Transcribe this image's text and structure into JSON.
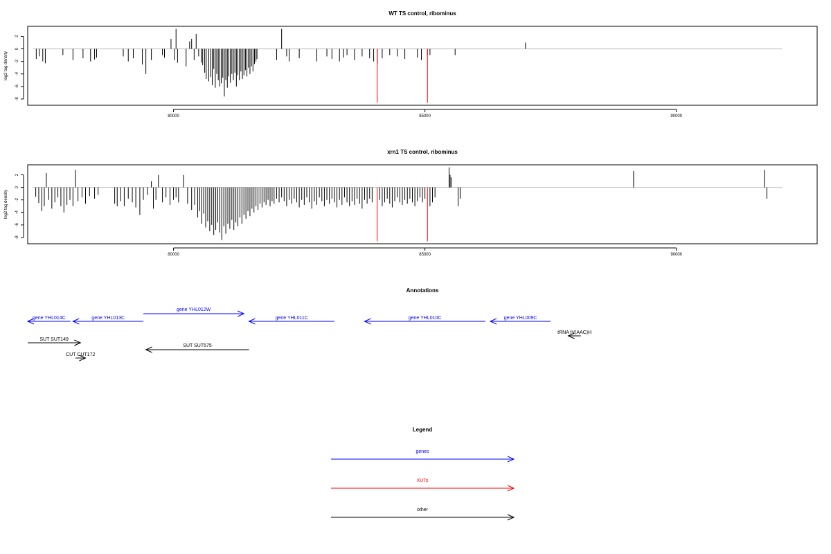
{
  "colors": {
    "gene": "#0000ff",
    "xut": "#ff0000",
    "other": "#000000",
    "baseline": "#bebebe"
  },
  "chart_data": [
    {
      "type": "bar",
      "title": "WT TS control, ribominus",
      "ylabel": "log2 tag density",
      "xlim": [
        77100,
        92800
      ],
      "ylim": [
        -9,
        3.6
      ],
      "xticks": [
        80000,
        85000,
        90000
      ],
      "yticks": [
        -8,
        -6,
        -4,
        -2,
        0,
        2
      ],
      "baseline_range": [
        77200,
        92100
      ],
      "bars": [
        [
          77270,
          -1.6
        ],
        [
          77330,
          -1.2
        ],
        [
          77400,
          -2.0
        ],
        [
          77450,
          -2.3
        ],
        [
          77800,
          -1.0
        ],
        [
          78000,
          -1.8
        ],
        [
          78200,
          -1.5
        ],
        [
          78350,
          -2.0
        ],
        [
          78430,
          -1.7
        ],
        [
          78470,
          -1.4
        ],
        [
          79000,
          -1.2
        ],
        [
          79100,
          -2.0
        ],
        [
          79200,
          -1.5
        ],
        [
          79380,
          -2.5
        ],
        [
          79450,
          -4.0
        ],
        [
          79560,
          -1.8
        ],
        [
          79780,
          -1.0
        ],
        [
          79820,
          -1.4
        ],
        [
          79950,
          1.6
        ],
        [
          80020,
          -1.8
        ],
        [
          80050,
          3.2
        ],
        [
          80080,
          -2.2
        ],
        [
          80250,
          -2.8
        ],
        [
          80320,
          1.2
        ],
        [
          80360,
          1.6
        ],
        [
          80410,
          -1.8
        ],
        [
          80450,
          2.4
        ],
        [
          80500,
          -1.2
        ],
        [
          80550,
          -2.2
        ],
        [
          80580,
          -2.6
        ],
        [
          80620,
          -3.8
        ],
        [
          80650,
          -4.8
        ],
        [
          80700,
          -5.2
        ],
        [
          80740,
          -4.5
        ],
        [
          80770,
          -5.8
        ],
        [
          80800,
          -3.2
        ],
        [
          80830,
          -6.2
        ],
        [
          80860,
          -4.0
        ],
        [
          80890,
          -5.0
        ],
        [
          80920,
          -6.0
        ],
        [
          80950,
          -5.5
        ],
        [
          80980,
          -4.6
        ],
        [
          81010,
          -7.6
        ],
        [
          81040,
          -5.0
        ],
        [
          81070,
          -6.2
        ],
        [
          81100,
          -4.4
        ],
        [
          81130,
          -5.4
        ],
        [
          81160,
          -4.0
        ],
        [
          81190,
          -5.0
        ],
        [
          81220,
          -3.8
        ],
        [
          81250,
          -6.0
        ],
        [
          81280,
          -4.2
        ],
        [
          81310,
          -5.0
        ],
        [
          81340,
          -3.6
        ],
        [
          81370,
          -4.8
        ],
        [
          81400,
          -4.2
        ],
        [
          81430,
          -3.4
        ],
        [
          81460,
          -4.4
        ],
        [
          81490,
          -3.0
        ],
        [
          81520,
          -4.0
        ],
        [
          81550,
          -2.8
        ],
        [
          81580,
          -3.6
        ],
        [
          81610,
          -2.4
        ],
        [
          81640,
          -2.0
        ],
        [
          81660,
          -1.6
        ],
        [
          82050,
          -1.8
        ],
        [
          82150,
          3.2
        ],
        [
          82250,
          -1.2
        ],
        [
          82300,
          -2.0
        ],
        [
          82500,
          -1.5
        ],
        [
          82850,
          -2.0
        ],
        [
          83050,
          -1.2
        ],
        [
          83150,
          -1.6
        ],
        [
          83300,
          -2.0
        ],
        [
          83380,
          -1.4
        ],
        [
          83450,
          -1.0
        ],
        [
          83600,
          -1.8
        ],
        [
          83750,
          -1.2
        ],
        [
          83900,
          -1.5
        ],
        [
          83980,
          -2.0
        ],
        [
          84050,
          -2.5
        ],
        [
          84150,
          -1.5
        ],
        [
          84300,
          -1.0
        ],
        [
          84450,
          -1.2
        ],
        [
          84600,
          -1.6
        ],
        [
          84850,
          -1.4
        ],
        [
          84930,
          -1.8
        ],
        [
          85050,
          -1.0
        ],
        [
          85100,
          -1.0
        ],
        [
          85600,
          -1.0
        ],
        [
          87000,
          1.0
        ]
      ],
      "xut_bars": [
        [
          84050,
          -8.6
        ],
        [
          85050,
          -8.6
        ]
      ]
    },
    {
      "type": "bar",
      "title": "xrn1 TS control, ribominus",
      "ylabel": "log2 tag density",
      "xlim": [
        77100,
        92800
      ],
      "ylim": [
        -9,
        3.6
      ],
      "xticks": [
        80000,
        85000,
        90000
      ],
      "yticks": [
        -8,
        -6,
        -4,
        -2,
        0,
        2
      ],
      "baseline_range": [
        77200,
        92100
      ],
      "bars": [
        [
          77260,
          -1.5
        ],
        [
          77320,
          -2.5
        ],
        [
          77380,
          -3.8
        ],
        [
          77430,
          -3.0
        ],
        [
          77470,
          2.3
        ],
        [
          77520,
          -2.0
        ],
        [
          77580,
          -3.4
        ],
        [
          77640,
          -2.4
        ],
        [
          77700,
          -1.6
        ],
        [
          77760,
          -3.0
        ],
        [
          77820,
          -4.0
        ],
        [
          77880,
          -2.8
        ],
        [
          77940,
          -2.0
        ],
        [
          78000,
          -3.0
        ],
        [
          78050,
          2.8
        ],
        [
          78100,
          -2.2
        ],
        [
          78180,
          -1.6
        ],
        [
          78250,
          -2.6
        ],
        [
          78330,
          -1.4
        ],
        [
          78430,
          -1.8
        ],
        [
          78500,
          -1.2
        ],
        [
          78830,
          -2.6
        ],
        [
          78880,
          -3.0
        ],
        [
          78950,
          -2.2
        ],
        [
          79020,
          -3.0
        ],
        [
          79100,
          -1.8
        ],
        [
          79180,
          -2.4
        ],
        [
          79250,
          -3.2
        ],
        [
          79330,
          -4.4
        ],
        [
          79400,
          -2.0
        ],
        [
          79480,
          -1.2
        ],
        [
          79560,
          1.0
        ],
        [
          79600,
          -3.4
        ],
        [
          79650,
          -2.0
        ],
        [
          79700,
          2.0
        ],
        [
          79780,
          -2.4
        ],
        [
          79850,
          -1.6
        ],
        [
          79930,
          -2.8
        ],
        [
          80000,
          -2.0
        ],
        [
          80050,
          -1.6
        ],
        [
          80100,
          -2.4
        ],
        [
          80200,
          2.0
        ],
        [
          80280,
          -2.6
        ],
        [
          80360,
          -3.6
        ],
        [
          80420,
          -2.8
        ],
        [
          80480,
          -4.8
        ],
        [
          80520,
          -3.8
        ],
        [
          80560,
          -5.8
        ],
        [
          80600,
          -4.2
        ],
        [
          80640,
          -6.4
        ],
        [
          80680,
          -5.4
        ],
        [
          80720,
          -7.0
        ],
        [
          80760,
          -6.0
        ],
        [
          80800,
          -7.6
        ],
        [
          80840,
          -6.8
        ],
        [
          80880,
          -5.6
        ],
        [
          80920,
          -7.2
        ],
        [
          80960,
          -8.4
        ],
        [
          81000,
          -6.2
        ],
        [
          81040,
          -7.4
        ],
        [
          81080,
          -5.8
        ],
        [
          81120,
          -6.6
        ],
        [
          81160,
          -5.2
        ],
        [
          81200,
          -6.8
        ],
        [
          81240,
          -5.6
        ],
        [
          81280,
          -6.2
        ],
        [
          81320,
          -4.8
        ],
        [
          81360,
          -5.8
        ],
        [
          81400,
          -4.4
        ],
        [
          81440,
          -5.0
        ],
        [
          81480,
          -3.8
        ],
        [
          81520,
          -4.6
        ],
        [
          81560,
          -3.4
        ],
        [
          81600,
          -4.0
        ],
        [
          81640,
          -3.0
        ],
        [
          81680,
          -3.6
        ],
        [
          81720,
          -2.6
        ],
        [
          81760,
          -3.2
        ],
        [
          81800,
          -2.4
        ],
        [
          81840,
          -2.8
        ],
        [
          81880,
          -2.0
        ],
        [
          81920,
          -3.0
        ],
        [
          81960,
          -2.2
        ],
        [
          82000,
          -2.6
        ],
        [
          82050,
          -1.8
        ],
        [
          82100,
          -2.4
        ],
        [
          82150,
          -1.6
        ],
        [
          82200,
          -2.2
        ],
        [
          82250,
          -3.0
        ],
        [
          82300,
          -2.0
        ],
        [
          82350,
          -2.6
        ],
        [
          82400,
          -1.8
        ],
        [
          82450,
          -2.4
        ],
        [
          82500,
          -3.2
        ],
        [
          82550,
          -2.0
        ],
        [
          82600,
          -2.8
        ],
        [
          82650,
          -1.6
        ],
        [
          82700,
          -2.4
        ],
        [
          82750,
          -3.4
        ],
        [
          82800,
          -2.2
        ],
        [
          82850,
          -2.8
        ],
        [
          82900,
          -1.6
        ],
        [
          82950,
          -2.2
        ],
        [
          83000,
          -3.0
        ],
        [
          83050,
          -2.0
        ],
        [
          83100,
          -2.6
        ],
        [
          83150,
          -1.8
        ],
        [
          83200,
          -2.4
        ],
        [
          83250,
          -3.2
        ],
        [
          83300,
          -2.0
        ],
        [
          83350,
          -2.8
        ],
        [
          83400,
          -1.6
        ],
        [
          83450,
          -2.4
        ],
        [
          83500,
          -3.0
        ],
        [
          83550,
          -2.2
        ],
        [
          83600,
          -2.8
        ],
        [
          83650,
          -1.8
        ],
        [
          83700,
          -2.6
        ],
        [
          83750,
          -3.4
        ],
        [
          83800,
          -2.0
        ],
        [
          83850,
          -2.6
        ],
        [
          83900,
          -1.8
        ],
        [
          83950,
          -2.4
        ],
        [
          84100,
          -2.0
        ],
        [
          84150,
          -3.0
        ],
        [
          84200,
          -2.4
        ],
        [
          84250,
          -1.8
        ],
        [
          84300,
          -2.6
        ],
        [
          84350,
          -3.2
        ],
        [
          84400,
          -2.2
        ],
        [
          84450,
          -1.6
        ],
        [
          84500,
          -2.4
        ],
        [
          84550,
          -2.8
        ],
        [
          84600,
          -2.0
        ],
        [
          84650,
          -2.6
        ],
        [
          84700,
          -1.8
        ],
        [
          84750,
          -2.4
        ],
        [
          84800,
          -3.0
        ],
        [
          84850,
          -2.2
        ],
        [
          84900,
          -1.6
        ],
        [
          84950,
          -2.4
        ],
        [
          85000,
          -1.8
        ],
        [
          85100,
          -3.0
        ],
        [
          85150,
          -2.4
        ],
        [
          85200,
          -1.6
        ],
        [
          85480,
          3.2
        ],
        [
          85500,
          2.0
        ],
        [
          85520,
          1.6
        ],
        [
          85660,
          -3.0
        ],
        [
          85700,
          -1.8
        ],
        [
          89150,
          2.6
        ],
        [
          91750,
          2.8
        ],
        [
          91800,
          -1.8
        ]
      ],
      "xut_bars": [
        [
          84050,
          -8.6
        ],
        [
          85050,
          -8.6
        ]
      ]
    }
  ],
  "annotations": {
    "title": "Annotations",
    "xlim": [
      77100,
      92800
    ],
    "features": [
      {
        "label": "gene YHL014C",
        "kind": "gene",
        "start": 77100,
        "end": 77950,
        "dir": "left",
        "row": 1
      },
      {
        "label": "gene YHL013C",
        "kind": "gene",
        "start": 78000,
        "end": 79400,
        "dir": "left",
        "row": 1
      },
      {
        "label": "gene YHL012W",
        "kind": "gene",
        "start": 79400,
        "end": 81400,
        "dir": "right",
        "row": 0
      },
      {
        "label": "gene YHL011C",
        "kind": "gene",
        "start": 81500,
        "end": 83200,
        "dir": "left",
        "row": 1
      },
      {
        "label": "gene YHL010C",
        "kind": "gene",
        "start": 83800,
        "end": 86200,
        "dir": "left",
        "row": 1
      },
      {
        "label": "gene YHL009C",
        "kind": "gene",
        "start": 86300,
        "end": 87500,
        "dir": "left",
        "row": 1
      },
      {
        "label": "tRNA tV(AAC)H",
        "kind": "other",
        "start": 87850,
        "end": 88100,
        "dir": "left",
        "row": 2
      },
      {
        "label": "SUT SUT149",
        "kind": "other",
        "start": 77100,
        "end": 78150,
        "dir": "right",
        "row": 3
      },
      {
        "label": "SUT SUT575",
        "kind": "other",
        "start": 79450,
        "end": 81500,
        "dir": "left",
        "row": 4
      },
      {
        "label": "CUT CUT172",
        "kind": "other",
        "start": 78050,
        "end": 78250,
        "dir": "right",
        "row": 5
      }
    ]
  },
  "legend": {
    "title": "Legend",
    "items": [
      {
        "label": "genes",
        "kind": "gene"
      },
      {
        "label": "XUTs",
        "kind": "xut"
      },
      {
        "label": "other",
        "kind": "other"
      }
    ]
  }
}
